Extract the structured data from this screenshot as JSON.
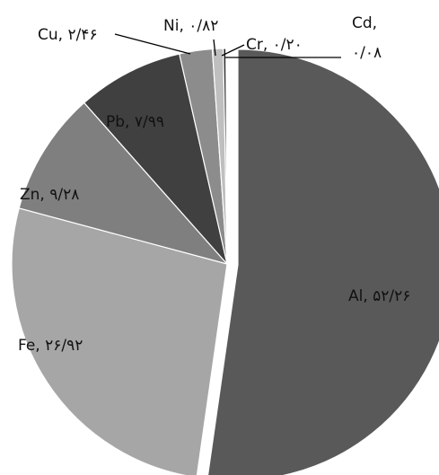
{
  "chart_data": {
    "type": "pie",
    "title": "",
    "slices": [
      {
        "name": "Al",
        "value": 52.26,
        "label": "Al, ۵۲/۲۶",
        "color": "#595959"
      },
      {
        "name": "Fe",
        "value": 26.92,
        "label": "Fe, ۲۶/۹۲",
        "color": "#a6a6a6"
      },
      {
        "name": "Zn",
        "value": 9.28,
        "label": "Zn, ۹/۲۸",
        "color": "#7f7f7f"
      },
      {
        "name": "Pb",
        "value": 7.99,
        "label": "Pb, ۷/۹۹",
        "color": "#404040"
      },
      {
        "name": "Cu",
        "value": 2.46,
        "label": "Cu, ۲/۴۶",
        "color": "#8c8c8c"
      },
      {
        "name": "Ni",
        "value": 0.82,
        "label": "Ni, ۰/۸۲",
        "color": "#bfbfbf"
      },
      {
        "name": "Cr",
        "value": 0.2,
        "label": "Cr, ۰/۲۰",
        "color": "#262626"
      },
      {
        "name": "Cd",
        "value": 0.08,
        "label": "Cd, ۰/۰۸",
        "color": "#d9d9d9"
      }
    ],
    "legend": "none",
    "grid": false
  }
}
